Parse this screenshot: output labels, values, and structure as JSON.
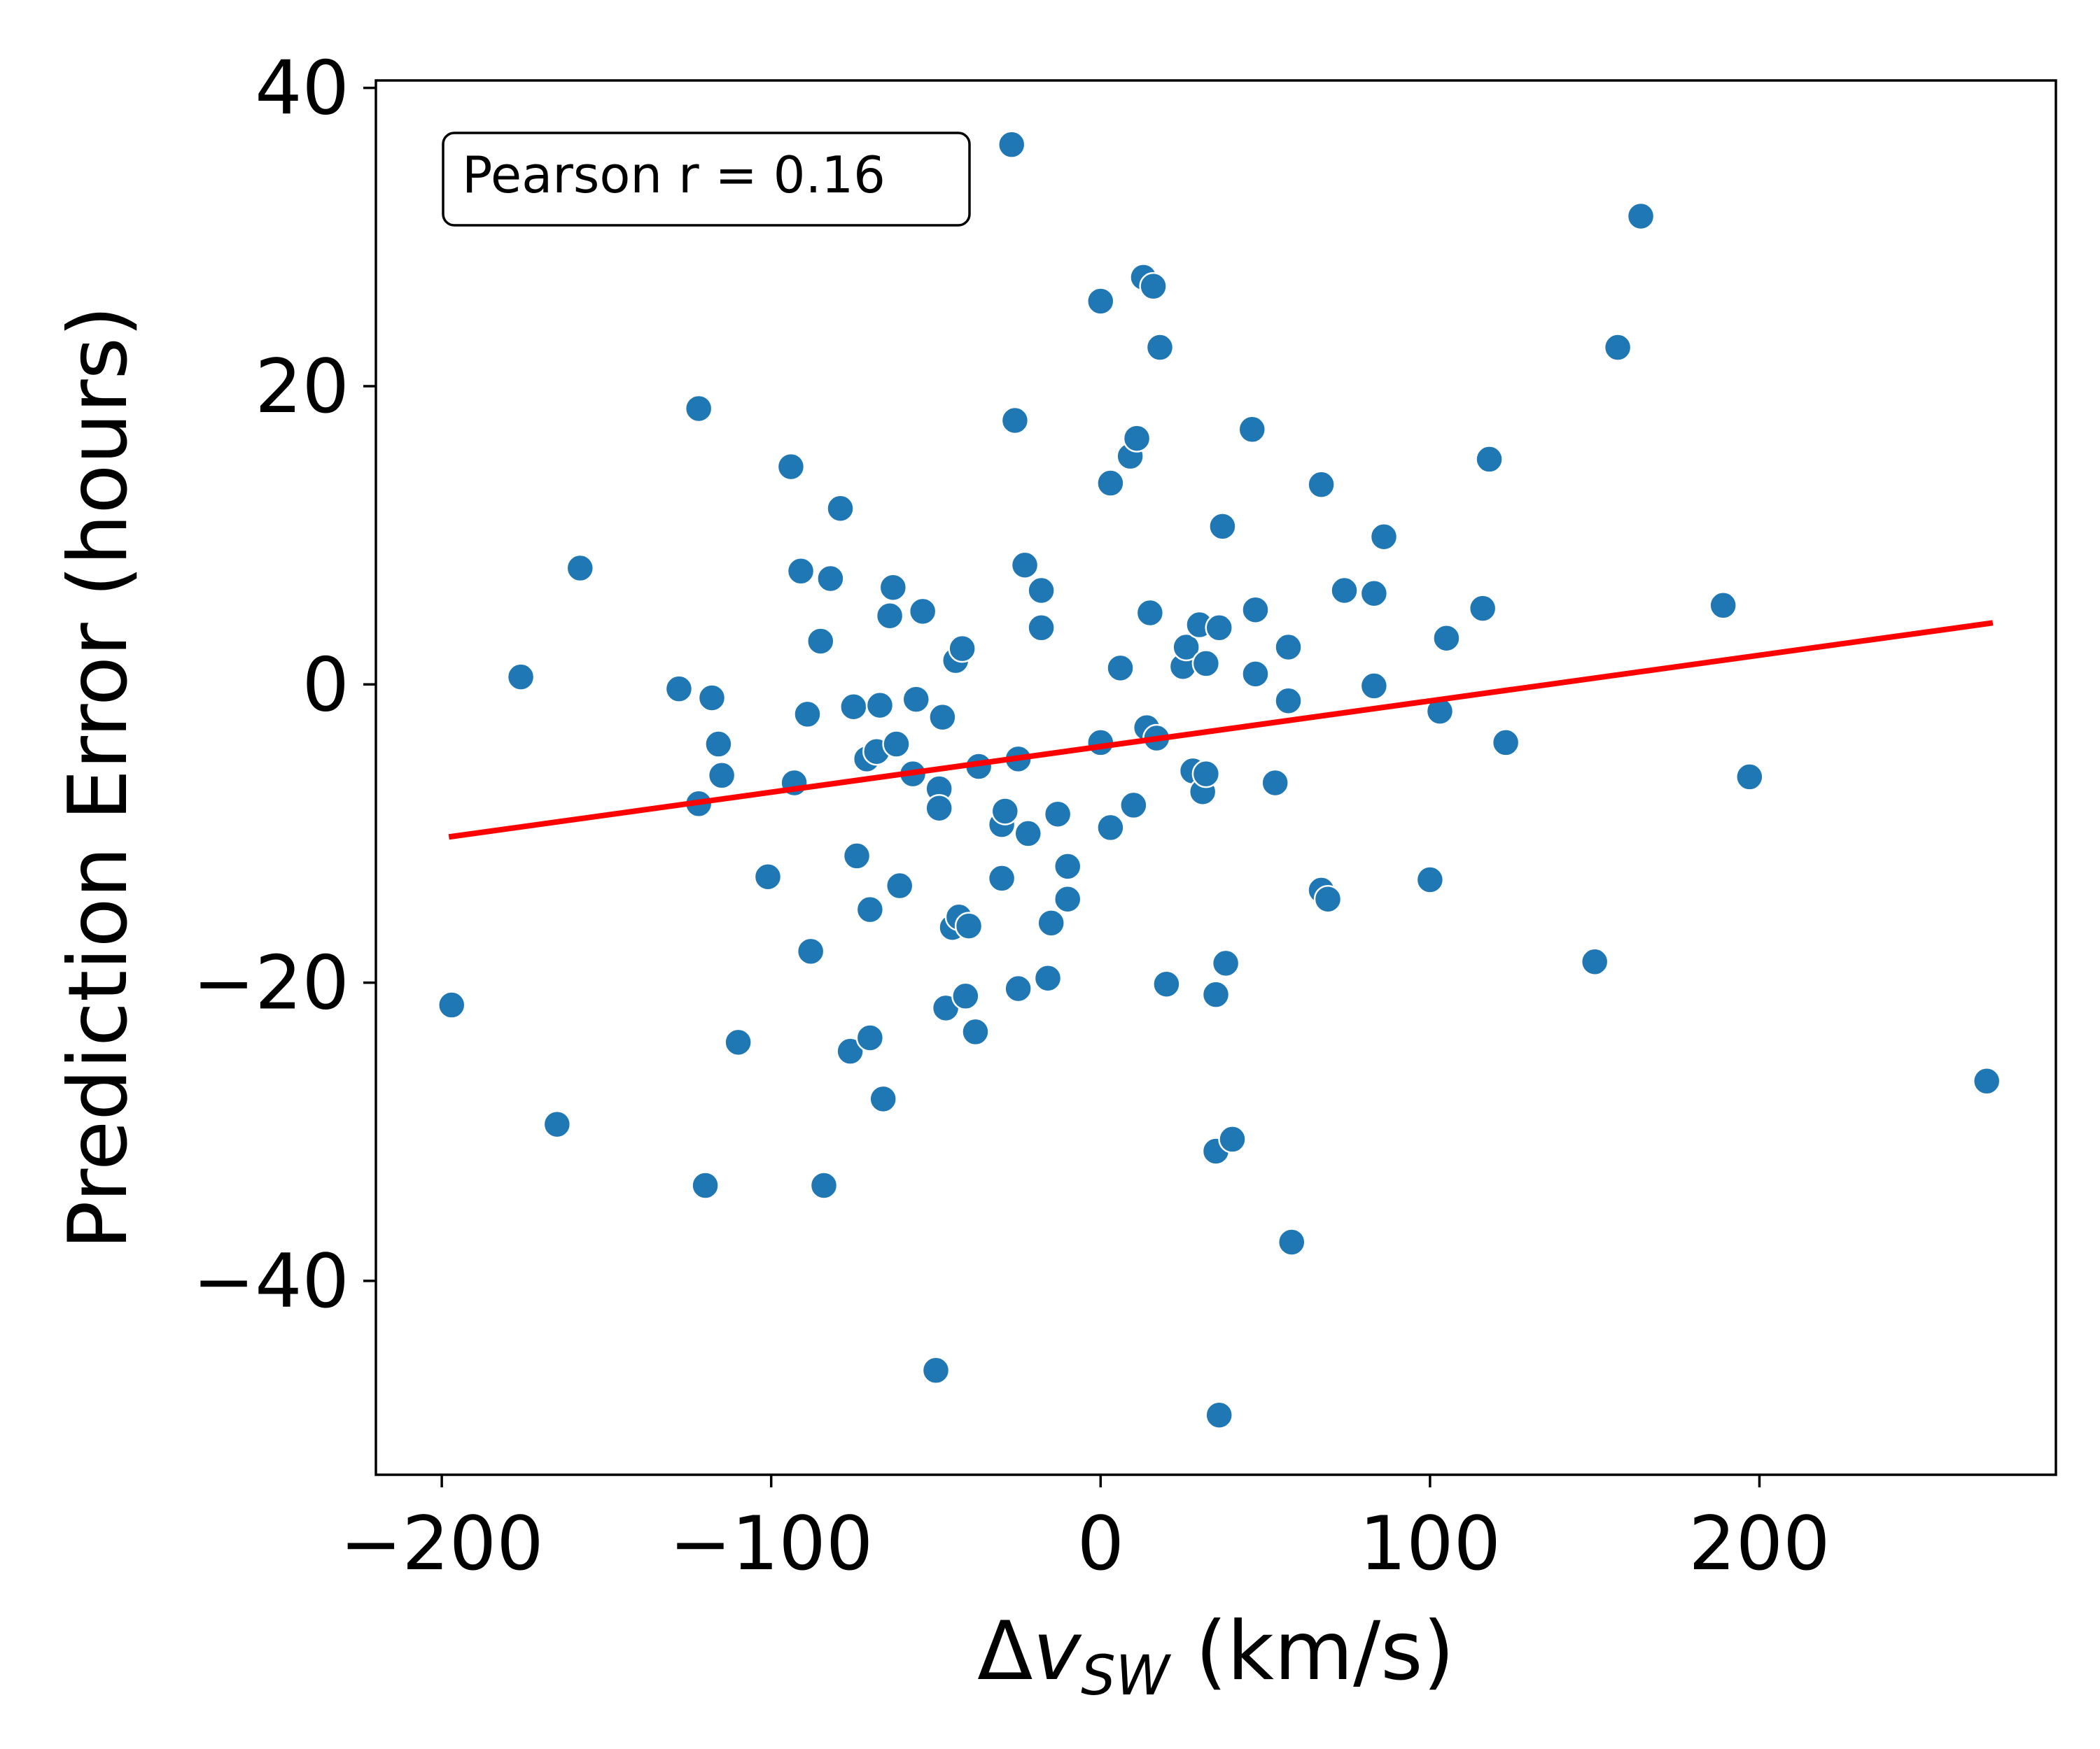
{
  "chart_data": {
    "type": "scatter",
    "xlabel": {
      "prefix": "Δ",
      "var": "v",
      "sub": "SW",
      "suffix": " (km/s)"
    },
    "ylabel": "Prediction Error (hours)",
    "xlim": [
      -220,
      290
    ],
    "ylim": [
      -53,
      40.5
    ],
    "xticks": [
      -200,
      -100,
      0,
      100,
      200
    ],
    "yticks": [
      -40,
      -20,
      0,
      20,
      40
    ],
    "x_tick_labels": [
      "−200",
      "−100",
      "0",
      "100",
      "200"
    ],
    "y_tick_labels": [
      "−40",
      "−20",
      "0",
      "20",
      "40"
    ],
    "grid": false,
    "annotation": "Pearson r = 0.16",
    "annotation_location": "top-left",
    "point_color": "#1f77b4",
    "fit_line_color": "#ff0000",
    "fit_line": {
      "x": [
        -197,
        270
      ],
      "y": [
        -10.2,
        4.1
      ]
    },
    "points": [
      [
        -197,
        -21.5
      ],
      [
        -176,
        0.5
      ],
      [
        -165,
        -29.5
      ],
      [
        -158,
        7.8
      ],
      [
        -128,
        -0.3
      ],
      [
        -122,
        -8
      ],
      [
        -122,
        18.5
      ],
      [
        -120,
        -33.6
      ],
      [
        -118,
        -0.9
      ],
      [
        -116,
        -4
      ],
      [
        -115,
        -6.1
      ],
      [
        -110,
        -24
      ],
      [
        -101,
        -12.9
      ],
      [
        -94,
        14.6
      ],
      [
        -93,
        -6.6
      ],
      [
        -91,
        7.6
      ],
      [
        -89,
        -2
      ],
      [
        -88,
        -17.9
      ],
      [
        -85,
        2.9
      ],
      [
        -84,
        -33.6
      ],
      [
        -82,
        7.1
      ],
      [
        -79,
        11.8
      ],
      [
        -76,
        -24.6
      ],
      [
        -75,
        -1.5
      ],
      [
        -74,
        -11.5
      ],
      [
        -71,
        -5
      ],
      [
        -70,
        -15.1
      ],
      [
        -70,
        -23.7
      ],
      [
        -68,
        -4.5
      ],
      [
        -67,
        -1.4
      ],
      [
        -66,
        -27.8
      ],
      [
        -64,
        4.6
      ],
      [
        -63,
        6.5
      ],
      [
        -62,
        -4
      ],
      [
        -61,
        -13.5
      ],
      [
        -57,
        -6
      ],
      [
        -56,
        -1
      ],
      [
        -54,
        4.9
      ],
      [
        -50,
        -46
      ],
      [
        -49,
        -7
      ],
      [
        -49,
        -8.3
      ],
      [
        -48,
        -2.2
      ],
      [
        -47,
        -21.7
      ],
      [
        -45,
        -16.3
      ],
      [
        -44,
        1.6
      ],
      [
        -43,
        -15.6
      ],
      [
        -42,
        2.4
      ],
      [
        -41,
        -20.9
      ],
      [
        -40,
        -16.2
      ],
      [
        -38,
        -23.3
      ],
      [
        -37,
        -5.5
      ],
      [
        -30,
        -13
      ],
      [
        -30,
        -9.4
      ],
      [
        -29,
        -8.5
      ],
      [
        -27,
        36.2
      ],
      [
        -26,
        17.7
      ],
      [
        -25,
        -5
      ],
      [
        -25,
        -20.4
      ],
      [
        -23,
        8
      ],
      [
        -22,
        -10
      ],
      [
        -18,
        6.3
      ],
      [
        -18,
        3.8
      ],
      [
        -16,
        -19.7
      ],
      [
        -15,
        -16
      ],
      [
        -13,
        -8.7
      ],
      [
        -10,
        -12.2
      ],
      [
        -10,
        -14.4
      ],
      [
        0,
        25.7
      ],
      [
        0,
        -3.9
      ],
      [
        3,
        13.5
      ],
      [
        3,
        -9.6
      ],
      [
        6,
        1.1
      ],
      [
        9,
        15.3
      ],
      [
        10,
        -8.1
      ],
      [
        11,
        16.5
      ],
      [
        13,
        27.3
      ],
      [
        14,
        -2.9
      ],
      [
        15,
        4.8
      ],
      [
        16,
        26.7
      ],
      [
        17,
        -3.6
      ],
      [
        18,
        22.6
      ],
      [
        20,
        -20.1
      ],
      [
        25,
        1.2
      ],
      [
        26,
        2.5
      ],
      [
        28,
        -5.8
      ],
      [
        30,
        4
      ],
      [
        31,
        -7.2
      ],
      [
        32,
        1.4
      ],
      [
        32,
        -6
      ],
      [
        35,
        -20.8
      ],
      [
        35,
        -31.3
      ],
      [
        36,
        -49
      ],
      [
        36,
        3.8
      ],
      [
        37,
        10.6
      ],
      [
        38,
        -18.7
      ],
      [
        40,
        -30.5
      ],
      [
        46,
        17.1
      ],
      [
        47,
        5
      ],
      [
        47,
        0.7
      ],
      [
        53,
        -6.6
      ],
      [
        57,
        2.5
      ],
      [
        57,
        -1.1
      ],
      [
        58,
        -37.4
      ],
      [
        67,
        13.4
      ],
      [
        67,
        -13.8
      ],
      [
        69,
        -14.4
      ],
      [
        74,
        6.3
      ],
      [
        83,
        6.1
      ],
      [
        83,
        -0.1
      ],
      [
        86,
        9.9
      ],
      [
        100,
        -13.1
      ],
      [
        103,
        -1.8
      ],
      [
        105,
        3.1
      ],
      [
        116,
        5.1
      ],
      [
        118,
        15.1
      ],
      [
        123,
        -3.9
      ],
      [
        150,
        -18.6
      ],
      [
        157,
        22.6
      ],
      [
        164,
        31.4
      ],
      [
        189,
        5.3
      ],
      [
        197,
        -6.2
      ],
      [
        269,
        -26.6
      ]
    ]
  }
}
